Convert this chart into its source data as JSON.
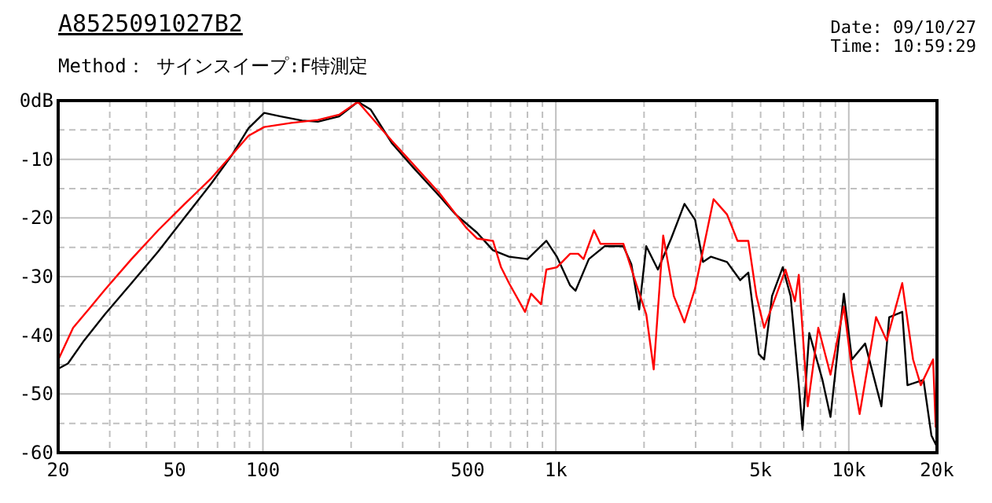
{
  "chart_data": {
    "type": "line",
    "title": "A8525091027B2",
    "annotations": [
      "Method： サインスイープ:F特測定",
      "Date: 09/10/27",
      "Time: 10:59:29"
    ],
    "xlim": [
      20,
      20000
    ],
    "ylim": [
      -60,
      0
    ],
    "log": "x",
    "grid": true,
    "line_style": "solid",
    "marker": "none",
    "xticks": [
      20,
      {
        "value": 30,
        "label": null
      },
      {
        "value": 40,
        "label": null
      },
      50,
      {
        "value": 60,
        "label": null
      },
      {
        "value": 70,
        "label": null
      },
      {
        "value": 80,
        "label": null
      },
      {
        "value": 90,
        "label": null
      },
      100,
      {
        "value": 200,
        "label": null
      },
      {
        "value": 300,
        "label": null
      },
      {
        "value": 400,
        "label": null
      },
      500,
      {
        "value": 600,
        "label": null
      },
      {
        "value": 700,
        "label": null
      },
      {
        "value": 800,
        "label": null
      },
      {
        "value": 900,
        "label": null
      },
      {
        "value": 1000,
        "label": "1k"
      },
      {
        "value": 2000,
        "label": null
      },
      {
        "value": 3000,
        "label": null
      },
      {
        "value": 4000,
        "label": null
      },
      {
        "value": 5000,
        "label": "5k"
      },
      {
        "value": 6000,
        "label": null
      },
      {
        "value": 7000,
        "label": null
      },
      {
        "value": 8000,
        "label": null
      },
      {
        "value": 9000,
        "label": null
      },
      {
        "value": 10000,
        "label": "10k"
      },
      {
        "value": 20000,
        "label": "20k"
      }
    ],
    "yticks": [
      {
        "value": 0,
        "label": "0dB"
      },
      {
        "value": -5,
        "label": null
      },
      -10,
      {
        "value": -15,
        "label": null
      },
      -20,
      {
        "value": -25,
        "label": null
      },
      -30,
      {
        "value": -35,
        "label": null
      },
      -40,
      {
        "value": -45,
        "label": null
      },
      -50,
      {
        "value": -55,
        "label": null
      },
      -60
    ],
    "series": [
      {
        "color": "#000000",
        "x": [
          20,
          21.6,
          24.5,
          28.9,
          35.6,
          43.9,
          54.1,
          66.7,
          78.8,
          89.3,
          101,
          115,
          136,
          154,
          182,
          211,
          233,
          276,
          326,
          401,
          455,
          538,
          610,
          692,
          801,
          928,
          1008,
          1119,
          1167,
          1296,
          1469,
          1700,
          1810,
          1925,
          2035,
          2230,
          2475,
          2748,
          2987,
          3180,
          3385,
          3840,
          4260,
          4540,
          4930,
          5140,
          5470,
          5950,
          6330,
          6750,
          6950,
          7330,
          8130,
          8660,
          9620,
          10250,
          11370,
          12920,
          13740,
          15220,
          15860,
          17990,
          19150,
          20000
        ],
        "values": [
          -45.7,
          -44.8,
          -40.9,
          -36.4,
          -31.1,
          -25.7,
          -19.9,
          -14.1,
          -9.1,
          -4.7,
          -2.1,
          -2.7,
          -3.4,
          -3.6,
          -2.7,
          -0.2,
          -1.5,
          -7.3,
          -11.4,
          -16.3,
          -19.4,
          -22.5,
          -25.5,
          -26.6,
          -27,
          -23.9,
          -26.6,
          -31.5,
          -32.4,
          -27,
          -24.8,
          -24.8,
          -27.9,
          -35.6,
          -24.8,
          -28.8,
          -23.5,
          -17.6,
          -20.3,
          -27.5,
          -26.6,
          -27.5,
          -30.6,
          -29.3,
          -43.2,
          -44.1,
          -33.3,
          -28.4,
          -33.3,
          -48.5,
          -56.1,
          -39.6,
          -47.6,
          -53.9,
          -32.9,
          -44.1,
          -41.4,
          -52.1,
          -36.9,
          -36,
          -48.5,
          -47.6,
          -57.1,
          -59
        ]
      },
      {
        "color": "#ff0000",
        "x": [
          20,
          22.5,
          25.5,
          28.9,
          35.6,
          43.9,
          54.1,
          66.7,
          78.8,
          89.3,
          101,
          125,
          154,
          182,
          211,
          276,
          401,
          495,
          538,
          610,
          650,
          692,
          785,
          823,
          890,
          928,
          1008,
          1119,
          1192,
          1243,
          1350,
          1420,
          1596,
          1700,
          1888,
          2035,
          2158,
          2325,
          2527,
          2748,
          2987,
          3455,
          3840,
          4170,
          4540,
          4840,
          5140,
          5470,
          6080,
          6550,
          6750,
          7240,
          7870,
          8660,
          9620,
          10250,
          10890,
          12390,
          13470,
          15220,
          16570,
          17610,
          19400,
          19800
        ],
        "values": [
          -44.2,
          -38.7,
          -35.5,
          -32.2,
          -27,
          -22.1,
          -17.6,
          -13.2,
          -9.1,
          -6,
          -4.5,
          -3.8,
          -3.3,
          -2.4,
          -0.2,
          -6.9,
          -15.8,
          -21.7,
          -23.5,
          -23.9,
          -28.4,
          -31.1,
          -36,
          -32.9,
          -34.7,
          -28.8,
          -28.4,
          -26.1,
          -26.1,
          -27,
          -22.1,
          -24.4,
          -24.4,
          -24.4,
          -31.5,
          -36.4,
          -45.8,
          -23,
          -33.3,
          -37.8,
          -32,
          -16.8,
          -19.4,
          -23.9,
          -23.9,
          -33.3,
          -38.7,
          -35.1,
          -28.8,
          -34.2,
          -29.7,
          -52.1,
          -38.7,
          -46.7,
          -35.1,
          -45.8,
          -53.4,
          -36.9,
          -40.9,
          -31.1,
          -44.1,
          -48.5,
          -44.1,
          -55.7
        ]
      }
    ]
  }
}
